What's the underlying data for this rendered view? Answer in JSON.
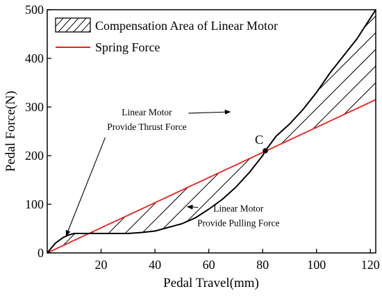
{
  "chart_data": {
    "type": "line",
    "title": "",
    "xlabel": "Pedal Travel(mm)",
    "ylabel": "Pedal Force(N)",
    "xlim": [
      0,
      122
    ],
    "ylim": [
      0,
      500
    ],
    "x_ticks": [
      20,
      40,
      60,
      80,
      100,
      120
    ],
    "y_ticks": [
      0,
      100,
      200,
      300,
      400,
      500
    ],
    "grid": false,
    "legend": {
      "placement": "top-left",
      "entries": [
        {
          "label": "Compensation Area of Linear Motor",
          "marker": "hatched-box"
        },
        {
          "label": "Spring Force",
          "marker": "red-line"
        }
      ]
    },
    "series": [
      {
        "name": "Spring Force",
        "color": "#e8221b",
        "x": [
          0,
          122
        ],
        "y": [
          0,
          315
        ]
      },
      {
        "name": "",
        "color": "#000000",
        "x": [
          0,
          3,
          6,
          8,
          10,
          15,
          20,
          30,
          35,
          40,
          50,
          55,
          60,
          65,
          70,
          75,
          80,
          81,
          85,
          90,
          95,
          100,
          105,
          110,
          115,
          122
        ],
        "y": [
          0,
          20,
          32,
          37,
          40,
          40,
          40,
          40,
          42,
          45,
          60,
          72,
          90,
          110,
          135,
          165,
          200,
          210,
          240,
          265,
          295,
          330,
          370,
          405,
          440,
          500
        ]
      }
    ],
    "point": {
      "label": "C",
      "x": 81,
      "y": 210
    },
    "annotations": [
      {
        "lines": [
          "Linear Motor",
          "Provide Thrust Force"
        ],
        "text_anchor": {
          "x": 37,
          "y": 283
        },
        "arrows_to": [
          {
            "x": 68,
            "y": 290
          },
          {
            "x": 7,
            "y": 35
          }
        ]
      },
      {
        "lines": [
          "Linear Motor",
          "Provide Pulling Force"
        ],
        "text_anchor": {
          "x": 71,
          "y": 85
        },
        "arrows_to": [
          {
            "x": 52,
            "y": 95
          }
        ]
      }
    ],
    "colors": {
      "spring": "#e8221b",
      "axis": "#000000"
    }
  }
}
